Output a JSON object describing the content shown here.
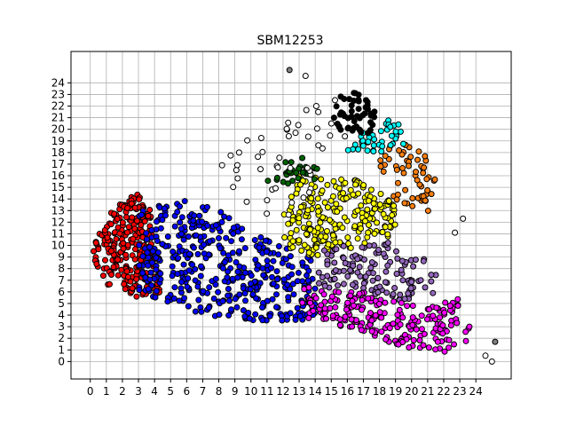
{
  "chart_data": {
    "type": "scatter",
    "title": "SBM12253",
    "xlabel": "",
    "ylabel": "",
    "xlim": [
      -1.2,
      26.2
    ],
    "ylim": [
      -1.5,
      26.7
    ],
    "xticks": [
      "0",
      "1",
      "2",
      "3",
      "4",
      "5",
      "6",
      "7",
      "8",
      "9",
      "10",
      "11",
      "12",
      "13",
      "14",
      "15",
      "16",
      "17",
      "18",
      "19",
      "20",
      "21",
      "22",
      "23",
      "24"
    ],
    "yticks": [
      "0",
      "1",
      "2",
      "3",
      "4",
      "5",
      "6",
      "7",
      "8",
      "9",
      "10",
      "11",
      "12",
      "13",
      "14",
      "15",
      "16",
      "17",
      "18",
      "19",
      "20",
      "21",
      "22",
      "23",
      "24"
    ],
    "grid": true,
    "marker_size": 6,
    "clusters": [
      {
        "color": "#ff0000",
        "count": 260,
        "region": [
          [
            0,
            9
          ],
          [
            1,
            13
          ],
          [
            3,
            14.5
          ],
          [
            4,
            12.5
          ],
          [
            4.5,
            6
          ],
          [
            3,
            5.5
          ],
          [
            1,
            6.5
          ]
        ]
      },
      {
        "color": "#0000ff",
        "count": 420,
        "region": [
          [
            3,
            13
          ],
          [
            6,
            14
          ],
          [
            8,
            13
          ],
          [
            10,
            11
          ],
          [
            12,
            10
          ],
          [
            14,
            9
          ],
          [
            14,
            4
          ],
          [
            13,
            3.5
          ],
          [
            10,
            3.5
          ],
          [
            7,
            4
          ],
          [
            5,
            5
          ],
          [
            3,
            6
          ]
        ]
      },
      {
        "color": "#ffff00",
        "count": 240,
        "region": [
          [
            12,
            13
          ],
          [
            13,
            16
          ],
          [
            16,
            16
          ],
          [
            19,
            14
          ],
          [
            19,
            11
          ],
          [
            17,
            10
          ],
          [
            14,
            9
          ],
          [
            12,
            10
          ]
        ]
      },
      {
        "color": "#9467bd",
        "count": 130,
        "region": [
          [
            14,
            9.5
          ],
          [
            18,
            10.5
          ],
          [
            21,
            9
          ],
          [
            22,
            6
          ],
          [
            20,
            5
          ],
          [
            17,
            6
          ],
          [
            14,
            6.5
          ]
        ]
      },
      {
        "color": "#ff00ff",
        "count": 220,
        "region": [
          [
            13,
            6.5
          ],
          [
            17,
            6
          ],
          [
            20,
            5
          ],
          [
            23,
            5.5
          ],
          [
            24,
            2
          ],
          [
            23,
            0.5
          ],
          [
            20,
            1
          ],
          [
            18,
            2
          ],
          [
            16,
            3
          ],
          [
            13,
            3.5
          ]
        ]
      },
      {
        "color": "#ff7f0e",
        "count": 60,
        "region": [
          [
            18,
            18.5
          ],
          [
            20.5,
            19
          ],
          [
            21.5,
            16
          ],
          [
            21,
            12.5
          ],
          [
            19,
            14
          ],
          [
            18,
            15.5
          ]
        ]
      },
      {
        "color": "#00ffff",
        "count": 40,
        "region": [
          [
            15.5,
            18
          ],
          [
            17,
            20
          ],
          [
            19,
            21
          ],
          [
            20,
            19
          ],
          [
            18.5,
            18
          ]
        ]
      },
      {
        "color": "#000000",
        "count": 50,
        "region": [
          [
            15,
            20
          ],
          [
            15.5,
            23.5
          ],
          [
            17,
            23
          ],
          [
            18,
            21
          ],
          [
            17.5,
            19.5
          ]
        ]
      },
      {
        "color": "#006400",
        "count": 30,
        "region": [
          [
            11,
            17
          ],
          [
            13.5,
            18
          ],
          [
            14.5,
            16
          ],
          [
            12,
            14.5
          ],
          [
            11,
            15.5
          ]
        ]
      },
      {
        "color": "#ffffff",
        "count": 45,
        "region": [
          [
            8,
            18
          ],
          [
            13,
            21
          ],
          [
            15,
            24.5
          ],
          [
            16,
            19
          ],
          [
            14,
            15
          ],
          [
            12,
            12
          ],
          [
            9,
            14
          ],
          [
            8,
            15
          ]
        ]
      }
    ],
    "outliers": [
      {
        "x": 12.4,
        "y": 25.1,
        "color": "#808080"
      },
      {
        "x": 25.2,
        "y": 1.7,
        "color": "#808080"
      },
      {
        "x": 25.0,
        "y": 0.0,
        "color": "#ffffff"
      },
      {
        "x": 24.6,
        "y": 0.5,
        "color": "#ffffff"
      },
      {
        "x": 23.2,
        "y": 12.3,
        "color": "#ffffff"
      },
      {
        "x": 22.7,
        "y": 11.1,
        "color": "#ffffff"
      },
      {
        "x": 8.2,
        "y": 16.9,
        "color": "#ffffff"
      },
      {
        "x": 13.4,
        "y": 24.6,
        "color": "#ffffff"
      }
    ]
  }
}
